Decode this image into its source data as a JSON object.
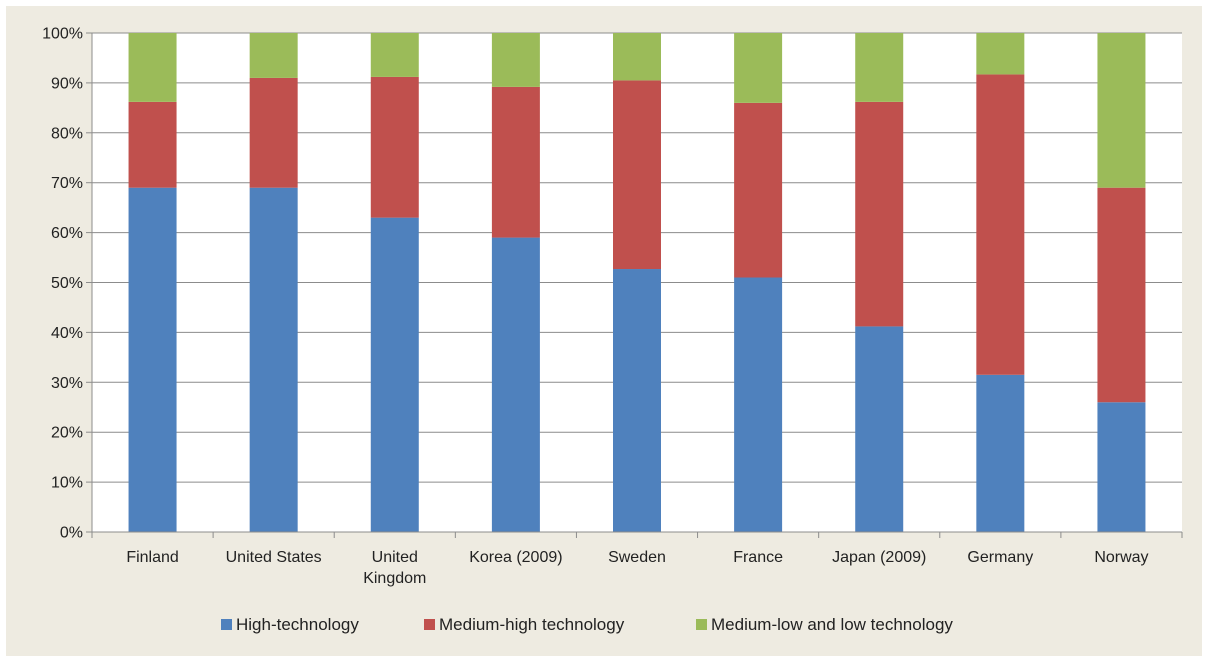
{
  "chart_data": {
    "type": "bar",
    "stacked": true,
    "categories": [
      [
        "Finland"
      ],
      [
        "United States"
      ],
      [
        "United",
        "Kingdom"
      ],
      [
        "Korea (2009)"
      ],
      [
        "Sweden"
      ],
      [
        "France"
      ],
      [
        "Japan (2009)"
      ],
      [
        "Germany"
      ],
      [
        "Norway"
      ]
    ],
    "series": [
      {
        "name": "High-technology",
        "color": "#4f81bd",
        "values": [
          69,
          69,
          63,
          59,
          52.7,
          51,
          41.2,
          31.5,
          26
        ]
      },
      {
        "name": "Medium-high technology",
        "color": "#c0504d",
        "values": [
          17.2,
          22,
          28.2,
          30.2,
          37.8,
          35,
          45,
          60.2,
          43
        ]
      },
      {
        "name": "Medium-low and low technology",
        "color": "#9bbb59",
        "values": [
          13.8,
          9,
          8.8,
          10.8,
          9.5,
          14,
          13.8,
          8.3,
          31
        ]
      }
    ],
    "ylim": [
      0,
      100
    ],
    "yticks": [
      "0%",
      "10%",
      "20%",
      "30%",
      "40%",
      "50%",
      "60%",
      "70%",
      "80%",
      "90%",
      "100%"
    ],
    "grid": true,
    "legend_position": "bottom",
    "title": "",
    "xlabel": "",
    "ylabel": ""
  }
}
